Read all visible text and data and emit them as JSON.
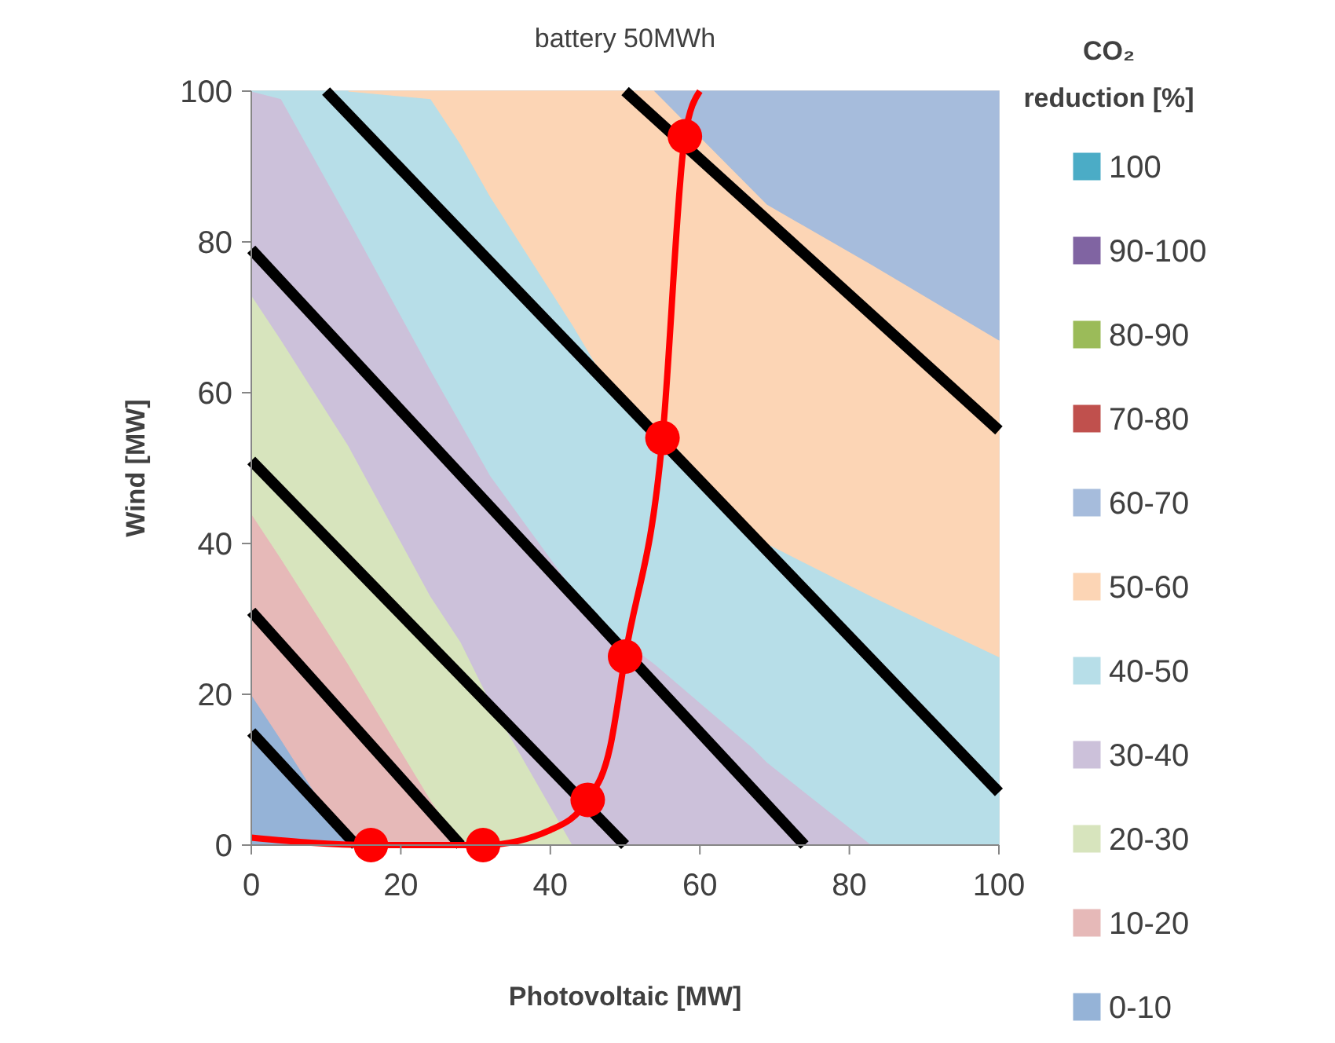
{
  "chart_data": {
    "type": "area",
    "title": "battery 50MWh",
    "xlabel": "Photovoltaic [MW]",
    "ylabel": "Wind [MW]",
    "legend_title": "CO₂ reduction [%]",
    "legend": "right",
    "stacked": true,
    "marker": "none",
    "line_style": "solid",
    "xlim": [
      0,
      100
    ],
    "ylim": [
      0,
      100
    ],
    "xticks": [
      0,
      20,
      40,
      60,
      80,
      100
    ],
    "yticks": [
      0,
      20,
      40,
      60,
      80,
      100
    ],
    "x": [
      0,
      4,
      13,
      24,
      28,
      32,
      43,
      46,
      50,
      54,
      67,
      69,
      83,
      100
    ],
    "series": [
      {
        "name": "0-10",
        "color": "#95b3d7",
        "values": [
          20,
          14,
          0,
          null,
          null,
          null,
          null,
          null,
          null,
          null,
          null,
          null,
          null,
          null
        ]
      },
      {
        "name": "10-20",
        "color": "#e6b9b8",
        "values": [
          24,
          24,
          24,
          6,
          0,
          null,
          null,
          null,
          null,
          null,
          null,
          null,
          null,
          null
        ]
      },
      {
        "name": "20-30",
        "color": "#d7e4bd",
        "values": [
          29,
          29,
          29,
          27,
          27,
          19,
          0,
          null,
          null,
          null,
          null,
          null,
          null,
          null
        ]
      },
      {
        "name": "30-40",
        "color": "#ccc1da",
        "values": [
          27,
          32,
          30,
          30,
          29,
          30,
          34,
          30,
          27,
          24,
          13,
          11,
          0,
          null
        ]
      },
      {
        "name": "40-50",
        "color": "#b7dee8",
        "values": [
          0,
          1,
          17,
          36,
          37,
          37,
          35,
          34,
          31,
          30,
          28,
          29,
          33,
          25
        ]
      },
      {
        "name": "50-60",
        "color": "#fcd5b5",
        "values": [
          null,
          null,
          0,
          1,
          7,
          14,
          31,
          36,
          42,
          46,
          46,
          45,
          44,
          42
        ]
      },
      {
        "name": "60-70",
        "color": "#a6bcdc",
        "values": [
          null,
          null,
          null,
          null,
          null,
          null,
          null,
          null,
          null,
          0,
          13,
          15,
          23,
          33
        ]
      },
      {
        "name": "70-80",
        "color": "#c0504d",
        "values": [
          null,
          null,
          null,
          null,
          null,
          null,
          null,
          null,
          null,
          null,
          null,
          null,
          null,
          null
        ]
      },
      {
        "name": "80-90",
        "color": "#9bbb59",
        "values": [
          null,
          null,
          null,
          null,
          null,
          null,
          null,
          null,
          null,
          null,
          null,
          null,
          null,
          null
        ]
      },
      {
        "name": "90-100",
        "color": "#8064a2",
        "values": [
          null,
          null,
          null,
          null,
          null,
          null,
          null,
          null,
          null,
          null,
          null,
          null,
          null,
          null
        ]
      },
      {
        "name": "100",
        "color": "#4bacc6",
        "values": [
          null,
          null,
          null,
          null,
          null,
          null,
          null,
          null,
          null,
          null,
          null,
          null,
          null,
          null
        ]
      },
      {
        "type": "line",
        "color": "#000000",
        "x": [
          0,
          14
        ],
        "values": [
          15,
          0
        ]
      },
      {
        "type": "line",
        "color": "#000000",
        "x": [
          0,
          28
        ],
        "values": [
          31,
          0
        ]
      },
      {
        "type": "line",
        "color": "#000000",
        "x": [
          0,
          50
        ],
        "values": [
          51,
          0
        ]
      },
      {
        "type": "line",
        "color": "#000000",
        "x": [
          0,
          74
        ],
        "values": [
          79,
          0
        ]
      },
      {
        "type": "line",
        "color": "#000000",
        "x": [
          10,
          100
        ],
        "values": [
          100,
          7
        ]
      },
      {
        "type": "line",
        "color": "#000000",
        "x": [
          50,
          100
        ],
        "values": [
          100,
          55
        ]
      },
      {
        "type": "line",
        "color": "#ff0000",
        "x": [
          0,
          16,
          31,
          40,
          45,
          48,
          50,
          55,
          58,
          60
        ],
        "values": [
          1,
          0,
          0,
          2,
          6,
          13,
          25,
          54,
          94,
          100
        ]
      },
      {
        "type": "scatter",
        "color": "#ff0000",
        "marker": "circle",
        "x": [
          16,
          31,
          45,
          50,
          55,
          58
        ],
        "values": [
          0,
          0,
          6,
          25,
          54,
          94
        ]
      }
    ]
  }
}
